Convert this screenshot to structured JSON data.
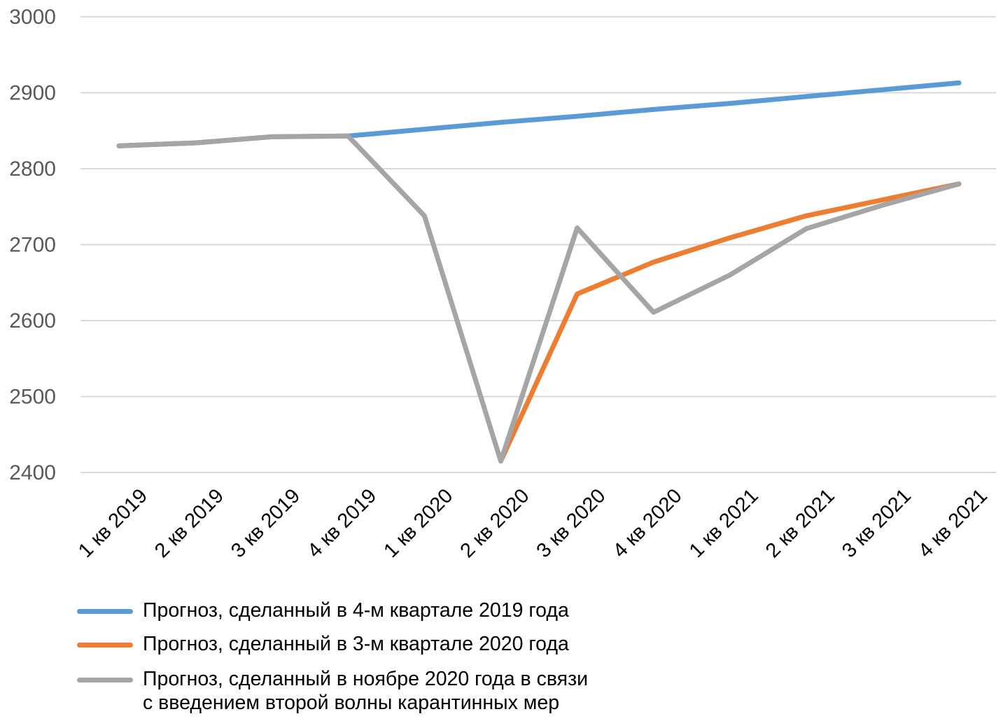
{
  "chart_data": {
    "type": "line",
    "title": "",
    "xlabel": "",
    "ylabel": "",
    "ylim": [
      2400,
      3000
    ],
    "yticks": [
      2400,
      2500,
      2600,
      2700,
      2800,
      2900,
      3000
    ],
    "grid": true,
    "legend_position": "bottom",
    "categories": [
      "1 кв 2019",
      "2 кв 2019",
      "3 кв 2019",
      "4 кв 2019",
      "1 кв 2020",
      "2 кв 2020",
      "3 кв 2020",
      "4 кв 2020",
      "1 кв 2021",
      "2 кв 2021",
      "3 кв 2021",
      "4 кв 2021"
    ],
    "series": [
      {
        "name": "Прогноз, сделанный в 4-м квартале 2019 года",
        "color": "#5b9bd5",
        "values": [
          2830,
          2834,
          2842,
          2843,
          2852,
          2861,
          2869,
          2878,
          2886,
          2895,
          2904,
          2913
        ]
      },
      {
        "name": "Прогноз, сделанный в 3-м квартале 2020 года",
        "color": "#ed7d31",
        "values": [
          null,
          null,
          null,
          null,
          null,
          2415,
          2635,
          2677,
          2709,
          2738,
          2759,
          2780
        ]
      },
      {
        "name_lines": [
          "Прогноз, сделанный в ноябре 2020 года в связи",
          "с введением второй волны карантинных мер"
        ],
        "color": "#a5a5a5",
        "values": [
          2830,
          2834,
          2842,
          2843,
          2738,
          2415,
          2722,
          2611,
          2660,
          2721,
          2752,
          2780
        ]
      }
    ]
  }
}
